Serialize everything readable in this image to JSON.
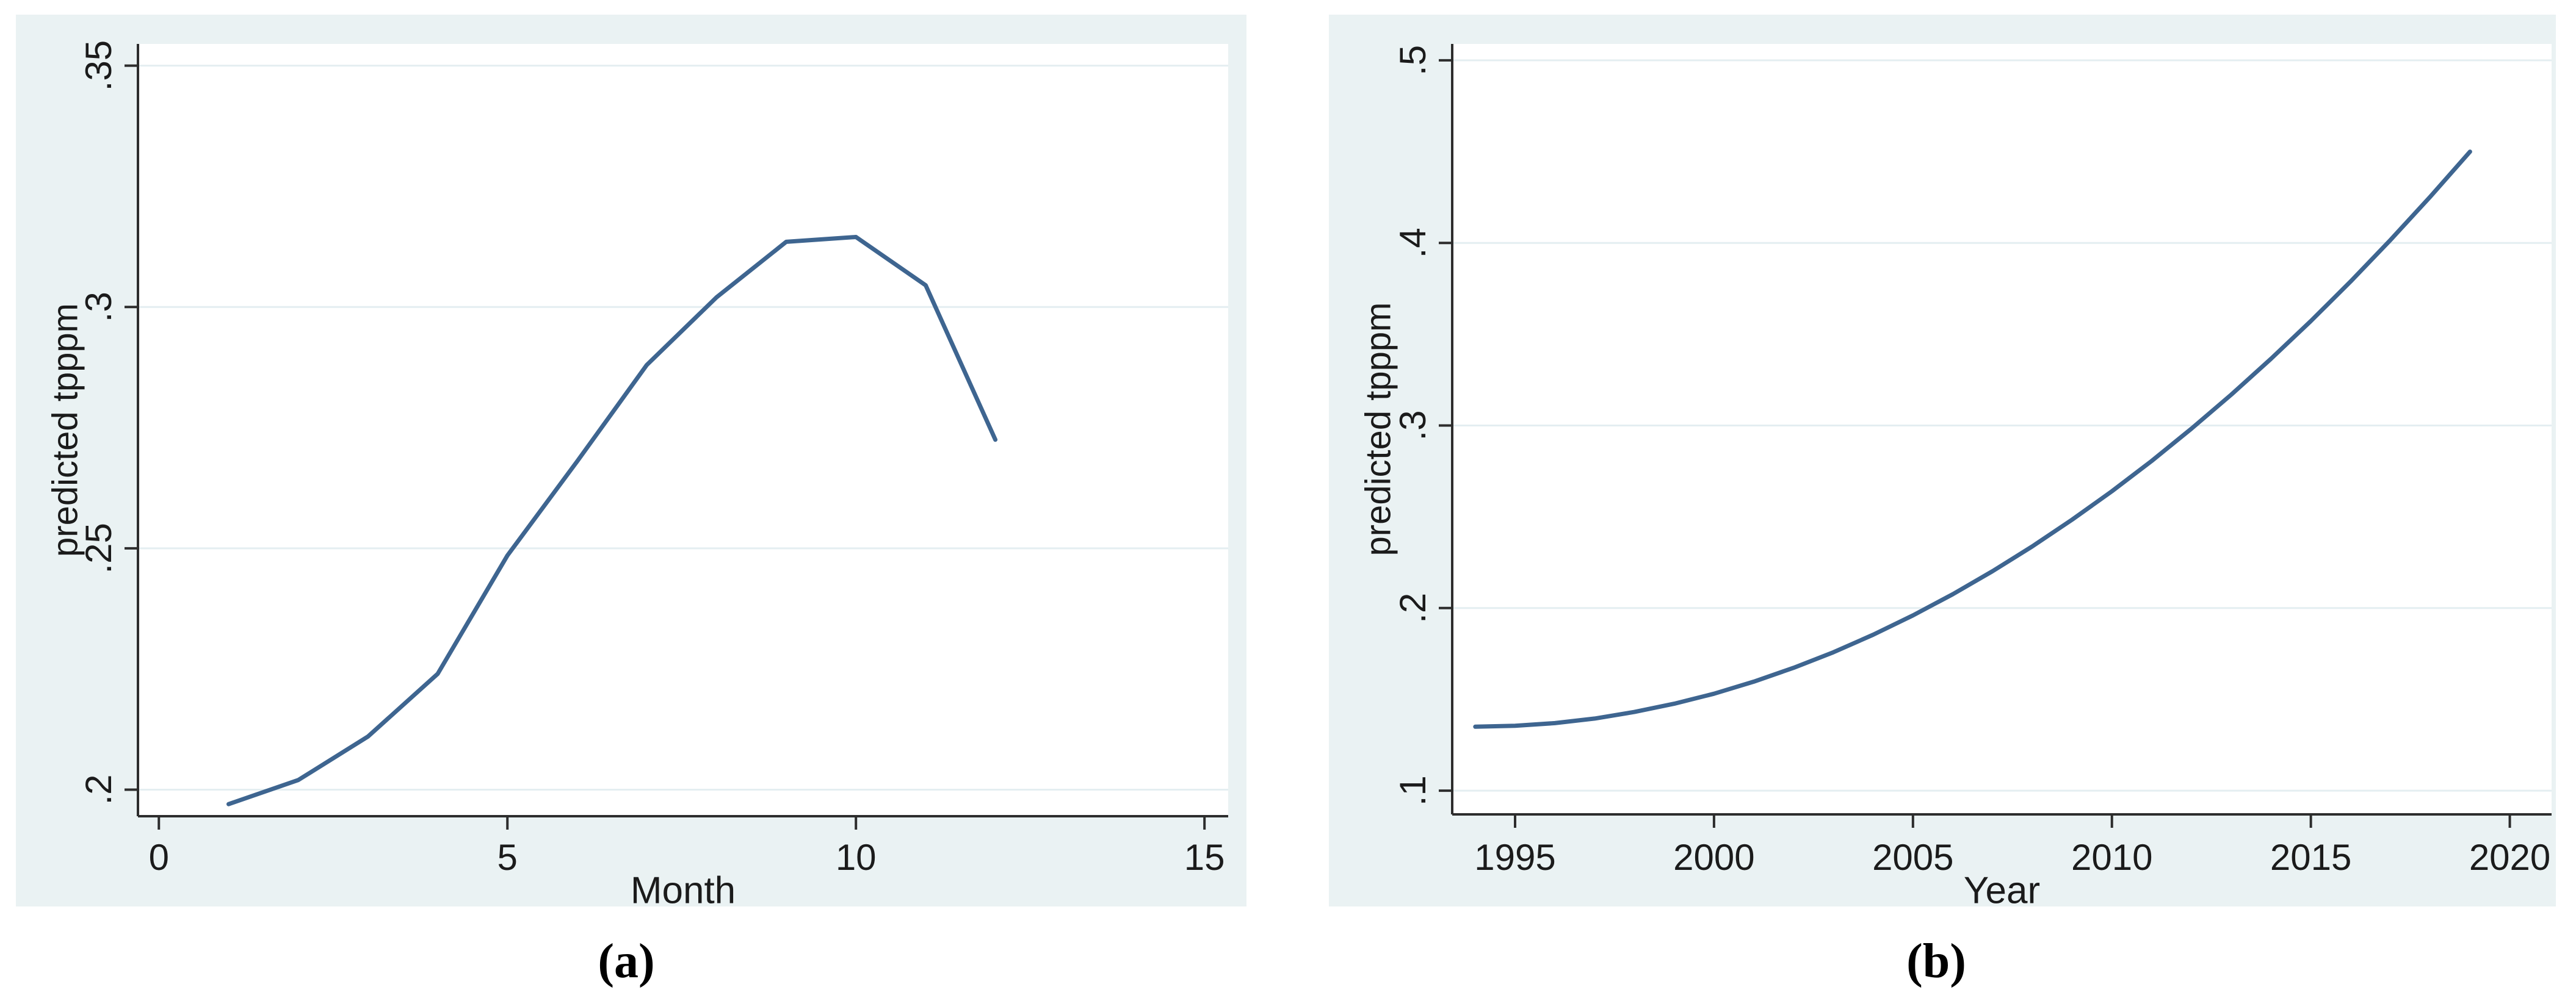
{
  "figure": {
    "captions": {
      "a": "(a)",
      "b": "(b)"
    },
    "colors": {
      "panel_bg": "#eaf2f3",
      "plot_bg": "#ffffff",
      "grid": "#e4eef1",
      "axis": "#2d2d2d",
      "text": "#1b1b1b",
      "line": "#3e6590"
    }
  },
  "chart_data": [
    {
      "type": "line",
      "panel": "a",
      "title": "",
      "xlabel": "Month",
      "ylabel": "predicted tpppm",
      "x": [
        1,
        2,
        3,
        4,
        5,
        6,
        7,
        8,
        9,
        10,
        11,
        12
      ],
      "y": [
        0.197,
        0.202,
        0.211,
        0.224,
        0.2485,
        0.268,
        0.288,
        0.302,
        0.3135,
        0.3145,
        0.3045,
        0.2725
      ],
      "xticks": {
        "values": [
          0,
          5,
          10,
          15
        ],
        "labels": [
          "0",
          "5",
          "10",
          "15"
        ]
      },
      "yticks": {
        "values": [
          0.2,
          0.25,
          0.3,
          0.35
        ],
        "labels": [
          ".2",
          ".25",
          ".3",
          ".35"
        ]
      },
      "xlim": [
        -0.3,
        15.34
      ],
      "ylim": [
        0.1945,
        0.3545
      ],
      "grid": true,
      "legend": "none"
    },
    {
      "type": "line",
      "panel": "b",
      "title": "",
      "xlabel": "Year",
      "ylabel": "predicted tpppm",
      "x": [
        1994,
        1995,
        1996,
        1997,
        1998,
        1999,
        2000,
        2001,
        2002,
        2003,
        2004,
        2005,
        2006,
        2007,
        2008,
        2009,
        2010,
        2011,
        2012,
        2013,
        2014,
        2015,
        2016,
        2017,
        2018,
        2019
      ],
      "y": [
        0.135,
        0.1355,
        0.137,
        0.1395,
        0.1431,
        0.1476,
        0.1531,
        0.1597,
        0.1673,
        0.1758,
        0.1854,
        0.196,
        0.2076,
        0.2202,
        0.2338,
        0.2484,
        0.264,
        0.2806,
        0.2983,
        0.3169,
        0.3366,
        0.3572,
        0.3789,
        0.4016,
        0.4253,
        0.45
      ],
      "xticks": {
        "values": [
          1995,
          2000,
          2005,
          2010,
          2015,
          2020
        ],
        "labels": [
          "1995",
          "2000",
          "2005",
          "2010",
          "2015",
          "2020"
        ]
      },
      "yticks": {
        "values": [
          0.1,
          0.2,
          0.3,
          0.4,
          0.5
        ],
        "labels": [
          ".1",
          ".2",
          ".3",
          ".4",
          ".5"
        ]
      },
      "xlim": [
        1993.42,
        2021.05
      ],
      "ylim": [
        0.087,
        0.509
      ],
      "grid": true,
      "legend": "none"
    }
  ]
}
